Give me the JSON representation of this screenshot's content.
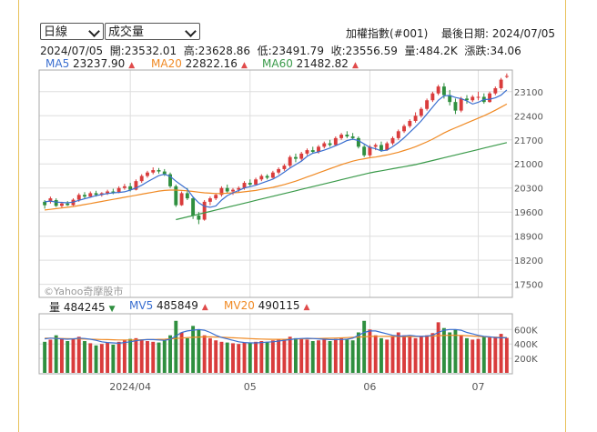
{
  "controls": {
    "period_select": "日線",
    "indicator_select": "成交量"
  },
  "header": {
    "index_name": "加權指數(#001)",
    "last_date_label": "最後日期: 2024/07/05",
    "quote_line": "2024/07/05  開:23532.01  高:23628.86  低:23491.79  收:23556.59  量:484.2K  漲跌:34.06"
  },
  "ma_legend": [
    {
      "label": "MA5",
      "value": "23237.90",
      "color": "#3a6fd0",
      "arrow": "▲"
    },
    {
      "label": "MA20",
      "value": "22822.16",
      "color": "#f08a24",
      "arrow": "▲"
    },
    {
      "label": "MA60",
      "value": "21482.82",
      "color": "#3a9a4a",
      "arrow": "▲"
    }
  ],
  "vol_legend": [
    {
      "label": "量",
      "value": "484245",
      "color": "#222",
      "arrow": "▼",
      "arrow_color": "#2f8f3f"
    },
    {
      "label": "MV5",
      "value": "485849",
      "color": "#3a6fd0",
      "arrow": "▲",
      "arrow_color": "#e04b4b"
    },
    {
      "label": "MV20",
      "value": "490115",
      "color": "#f08a24",
      "arrow": "▲",
      "arrow_color": "#e04b4b"
    }
  ],
  "watermark": "©Yahoo奇摩股市",
  "colors": {
    "up": "#d93c3c",
    "down": "#2f8f3f",
    "ma5": "#3a6fd0",
    "ma20": "#f08a24",
    "ma60": "#3a9a4a",
    "grid": "#dddddd"
  },
  "chart_data": {
    "type": "candlestick",
    "price_axis": {
      "ticks": [
        17500,
        18200,
        18900,
        19600,
        20300,
        21000,
        21700,
        22400,
        23100
      ],
      "ylim": [
        17200,
        23650
      ]
    },
    "volume_axis": {
      "ticks": [
        "200K",
        "400K",
        "600K"
      ],
      "tick_values": [
        200,
        400,
        600
      ],
      "ylim": [
        0,
        780
      ],
      "unit": "K"
    },
    "x_ticks": [
      {
        "label": "2024/04",
        "index": 15
      },
      {
        "label": "05",
        "index": 36
      },
      {
        "label": "06",
        "index": 57
      },
      {
        "label": "07",
        "index": 76
      }
    ],
    "candles": [
      [
        19800,
        19950,
        19700,
        19900,
        430,
        "d"
      ],
      [
        19900,
        20050,
        19850,
        20000,
        460,
        "u"
      ],
      [
        19950,
        20000,
        19750,
        19780,
        520,
        "d"
      ],
      [
        19780,
        19900,
        19720,
        19850,
        480,
        "u"
      ],
      [
        19850,
        19920,
        19780,
        19800,
        440,
        "d"
      ],
      [
        19800,
        20000,
        19780,
        19960,
        470,
        "u"
      ],
      [
        19960,
        20150,
        19900,
        20100,
        500,
        "u"
      ],
      [
        20100,
        20180,
        20000,
        20050,
        440,
        "d"
      ],
      [
        20050,
        20200,
        20020,
        20150,
        410,
        "u"
      ],
      [
        20150,
        20220,
        20050,
        20100,
        380,
        "d"
      ],
      [
        20100,
        20180,
        20050,
        20150,
        400,
        "u"
      ],
      [
        20150,
        20250,
        20100,
        20200,
        420,
        "u"
      ],
      [
        20200,
        20280,
        20120,
        20180,
        390,
        "d"
      ],
      [
        20180,
        20350,
        20150,
        20300,
        430,
        "u"
      ],
      [
        20300,
        20420,
        20250,
        20350,
        450,
        "u"
      ],
      [
        20350,
        20450,
        20200,
        20250,
        470,
        "d"
      ],
      [
        20250,
        20550,
        20230,
        20500,
        480,
        "u"
      ],
      [
        20500,
        20700,
        20450,
        20650,
        460,
        "u"
      ],
      [
        20650,
        20800,
        20600,
        20750,
        440,
        "u"
      ],
      [
        20750,
        20900,
        20700,
        20820,
        430,
        "u"
      ],
      [
        20820,
        20880,
        20720,
        20780,
        420,
        "d"
      ],
      [
        20780,
        20850,
        20650,
        20700,
        450,
        "d"
      ],
      [
        20700,
        20750,
        20300,
        20350,
        520,
        "d"
      ],
      [
        20350,
        20400,
        19750,
        19800,
        720,
        "d"
      ],
      [
        19800,
        20200,
        19780,
        20150,
        560,
        "u"
      ],
      [
        20150,
        20300,
        19950,
        20000,
        480,
        "d"
      ],
      [
        20000,
        20050,
        19400,
        19500,
        650,
        "d"
      ],
      [
        19500,
        19600,
        19250,
        19380,
        600,
        "d"
      ],
      [
        19380,
        19950,
        19350,
        19900,
        520,
        "u"
      ],
      [
        19900,
        20050,
        19800,
        20000,
        480,
        "u"
      ],
      [
        20000,
        20150,
        19950,
        20100,
        450,
        "u"
      ],
      [
        20100,
        20350,
        20050,
        20300,
        430,
        "u"
      ],
      [
        20300,
        20400,
        20150,
        20200,
        420,
        "d"
      ],
      [
        20200,
        20300,
        20100,
        20250,
        410,
        "u"
      ],
      [
        20250,
        20350,
        20180,
        20300,
        400,
        "u"
      ],
      [
        20300,
        20500,
        20250,
        20450,
        420,
        "u"
      ],
      [
        20450,
        20550,
        20350,
        20400,
        410,
        "d"
      ],
      [
        20400,
        20600,
        20380,
        20550,
        430,
        "u"
      ],
      [
        20550,
        20700,
        20500,
        20650,
        440,
        "u"
      ],
      [
        20650,
        20700,
        20550,
        20600,
        430,
        "d"
      ],
      [
        20600,
        20800,
        20580,
        20750,
        450,
        "u"
      ],
      [
        20750,
        20900,
        20700,
        20850,
        460,
        "u"
      ],
      [
        20850,
        21000,
        20800,
        20950,
        470,
        "u"
      ],
      [
        20950,
        21250,
        20900,
        21200,
        500,
        "u"
      ],
      [
        21200,
        21300,
        21050,
        21150,
        480,
        "d"
      ],
      [
        21150,
        21350,
        21100,
        21300,
        470,
        "u"
      ],
      [
        21300,
        21450,
        21250,
        21400,
        460,
        "u"
      ],
      [
        21400,
        21500,
        21300,
        21350,
        440,
        "d"
      ],
      [
        21350,
        21550,
        21300,
        21500,
        450,
        "u"
      ],
      [
        21500,
        21650,
        21450,
        21600,
        460,
        "u"
      ],
      [
        21600,
        21700,
        21500,
        21550,
        440,
        "d"
      ],
      [
        21550,
        21800,
        21520,
        21750,
        470,
        "u"
      ],
      [
        21750,
        21900,
        21700,
        21850,
        480,
        "u"
      ],
      [
        21850,
        21950,
        21750,
        21800,
        460,
        "d"
      ],
      [
        21800,
        21900,
        21700,
        21750,
        450,
        "d"
      ],
      [
        21750,
        21800,
        21450,
        21500,
        560,
        "d"
      ],
      [
        21500,
        21550,
        21200,
        21250,
        720,
        "d"
      ],
      [
        21250,
        21550,
        21200,
        21500,
        600,
        "u"
      ],
      [
        21500,
        21600,
        21400,
        21550,
        520,
        "u"
      ],
      [
        21550,
        21650,
        21350,
        21400,
        480,
        "d"
      ],
      [
        21400,
        21650,
        21380,
        21600,
        460,
        "u"
      ],
      [
        21600,
        21800,
        21550,
        21750,
        500,
        "u"
      ],
      [
        21750,
        22000,
        21700,
        21950,
        560,
        "u"
      ],
      [
        21950,
        22150,
        21900,
        22100,
        520,
        "u"
      ],
      [
        22100,
        22300,
        22050,
        22250,
        500,
        "u"
      ],
      [
        22250,
        22500,
        22200,
        22400,
        480,
        "u"
      ],
      [
        22400,
        22650,
        22350,
        22600,
        510,
        "u"
      ],
      [
        22600,
        22900,
        22550,
        22850,
        520,
        "u"
      ],
      [
        22850,
        23100,
        22800,
        23050,
        550,
        "u"
      ],
      [
        23050,
        23300,
        23000,
        23250,
        700,
        "u"
      ],
      [
        23250,
        23350,
        22900,
        23000,
        620,
        "d"
      ],
      [
        23000,
        23150,
        22700,
        22800,
        560,
        "d"
      ],
      [
        22800,
        22900,
        22450,
        22550,
        600,
        "d"
      ],
      [
        22550,
        22950,
        22500,
        22900,
        520,
        "u"
      ],
      [
        22900,
        23000,
        22750,
        22850,
        480,
        "d"
      ],
      [
        22850,
        23000,
        22800,
        22950,
        460,
        "u"
      ],
      [
        22950,
        23100,
        22850,
        22950,
        470,
        "u"
      ],
      [
        22950,
        23050,
        22750,
        22800,
        500,
        "d"
      ],
      [
        22800,
        23100,
        22780,
        23050,
        490,
        "u"
      ],
      [
        23050,
        23250,
        23000,
        23200,
        500,
        "u"
      ],
      [
        23200,
        23500,
        23150,
        23450,
        540,
        "u"
      ],
      [
        23532.01,
        23628.86,
        23491.79,
        23556.59,
        484,
        "u"
      ]
    ],
    "ma5": [
      19900,
      19920,
      19890,
      19880,
      19870,
      19890,
      19940,
      19990,
      20030,
      20080,
      20110,
      20140,
      20160,
      20170,
      20190,
      20240,
      20300,
      20380,
      20480,
      20570,
      20660,
      20700,
      20640,
      20500,
      20380,
      20260,
      20040,
      19870,
      19770,
      19740,
      19780,
      19950,
      20080,
      20160,
      20230,
      20300,
      20340,
      20380,
      20440,
      20500,
      20560,
      20650,
      20760,
      20880,
      20980,
      21080,
      21220,
      21310,
      21350,
      21400,
      21460,
      21530,
      21600,
      21680,
      21720,
      21680,
      21580,
      21480,
      21440,
      21380,
      21400,
      21500,
      21620,
      21760,
      21920,
      22080,
      22250,
      22450,
      22650,
      22850,
      22980,
      22990,
      22930,
      22900,
      22830,
      22740,
      22790,
      22870,
      22880,
      22920,
      23000,
      23150
    ],
    "ma20": [
      19660,
      19680,
      19700,
      19720,
      19740,
      19760,
      19790,
      19820,
      19850,
      19880,
      19910,
      19940,
      19970,
      20000,
      20030,
      20060,
      20090,
      20120,
      20150,
      20180,
      20210,
      20230,
      20240,
      20240,
      20230,
      20220,
      20200,
      20180,
      20160,
      20150,
      20140,
      20140,
      20150,
      20160,
      20170,
      20190,
      20210,
      20230,
      20260,
      20290,
      20320,
      20360,
      20400,
      20450,
      20500,
      20560,
      20620,
      20680,
      20740,
      20800,
      20860,
      20920,
      20980,
      21030,
      21080,
      21120,
      21150,
      21180,
      21200,
      21230,
      21260,
      21300,
      21340,
      21390,
      21440,
      21500,
      21570,
      21640,
      21720,
      21810,
      21900,
      21980,
      22050,
      22120,
      22190,
      22260,
      22330,
      22400,
      22480,
      22560,
      22650,
      22740
    ],
    "ma60_start_index": 23,
    "ma60": [
      19380,
      19420,
      19460,
      19500,
      19540,
      19580,
      19620,
      19660,
      19700,
      19740,
      19780,
      19820,
      19860,
      19900,
      19940,
      19980,
      20020,
      20060,
      20100,
      20140,
      20180,
      20220,
      20260,
      20300,
      20340,
      20380,
      20420,
      20460,
      20500,
      20540,
      20580,
      20620,
      20660,
      20700,
      20740,
      20770,
      20800,
      20830,
      20860,
      20890,
      20920,
      20950,
      20980,
      21020,
      21060,
      21100,
      21140,
      21180,
      21220,
      21260,
      21300,
      21340,
      21380,
      21420,
      21460,
      21500,
      21540,
      21580,
      21620
    ],
    "mv5": [
      470,
      480,
      475,
      470,
      465,
      470,
      480,
      475,
      465,
      450,
      430,
      420,
      415,
      410,
      420,
      430,
      445,
      455,
      460,
      460,
      455,
      450,
      465,
      510,
      560,
      580,
      590,
      600,
      590,
      560,
      520,
      490,
      470,
      450,
      430,
      420,
      415,
      415,
      420,
      425,
      430,
      440,
      450,
      460,
      470,
      475,
      478,
      475,
      470,
      465,
      460,
      460,
      462,
      465,
      480,
      520,
      560,
      580,
      580,
      560,
      540,
      520,
      510,
      510,
      520,
      510,
      505,
      510,
      520,
      560,
      590,
      600,
      600,
      590,
      560,
      540,
      520,
      505,
      500,
      490,
      485,
      486
    ],
    "mv20": [
      480,
      480,
      478,
      476,
      474,
      472,
      470,
      468,
      466,
      464,
      462,
      460,
      458,
      456,
      455,
      455,
      456,
      458,
      460,
      462,
      464,
      466,
      470,
      476,
      482,
      488,
      492,
      496,
      498,
      498,
      496,
      494,
      490,
      486,
      482,
      478,
      474,
      470,
      468,
      466,
      464,
      464,
      464,
      466,
      468,
      470,
      472,
      474,
      476,
      478,
      480,
      482,
      484,
      488,
      492,
      496,
      500,
      504,
      506,
      506,
      505,
      504,
      503,
      502,
      502,
      503,
      505,
      507,
      510,
      514,
      518,
      520,
      520,
      518,
      514,
      510,
      505,
      500,
      496,
      492,
      490,
      490
    ]
  }
}
